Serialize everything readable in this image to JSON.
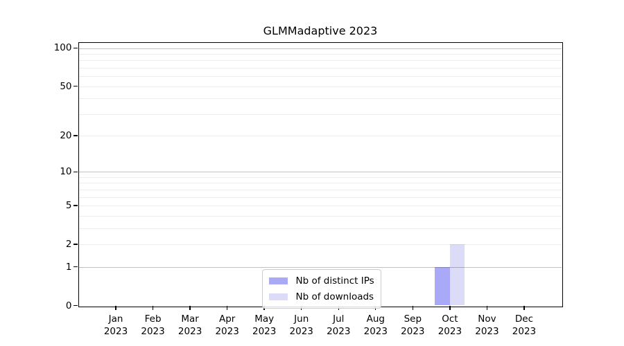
{
  "chart_data": {
    "type": "bar",
    "title": "GLMMadaptive 2023",
    "categories": [
      "Jan 2023",
      "Feb 2023",
      "Mar 2023",
      "Apr 2023",
      "May 2023",
      "Jun 2023",
      "Jul 2023",
      "Aug 2023",
      "Sep 2023",
      "Oct 2023",
      "Nov 2023",
      "Dec 2023"
    ],
    "series": [
      {
        "name": "Nb of distinct IPs",
        "color": "#a9a9f7",
        "values": [
          0,
          0,
          0,
          0,
          0,
          0,
          0,
          0,
          0,
          1,
          0,
          0
        ]
      },
      {
        "name": "Nb of downloads",
        "color": "#dcdcf8",
        "values": [
          0,
          0,
          0,
          0,
          0,
          0,
          0,
          0,
          0,
          2,
          0,
          0
        ]
      }
    ],
    "xlabel": "",
    "ylabel": "",
    "yscale": "log1p",
    "yticks": [
      0,
      1,
      2,
      5,
      10,
      20,
      50,
      100
    ],
    "ylim": [
      0,
      110.5
    ],
    "gridlines": {
      "major": [
        1,
        10,
        100
      ],
      "minor": [
        2,
        3,
        4,
        5,
        6,
        7,
        8,
        9,
        20,
        30,
        40,
        50,
        60,
        70,
        80,
        90
      ]
    },
    "legend_position": "lower center",
    "background": "#ffffff",
    "spine_color": "#000000"
  }
}
